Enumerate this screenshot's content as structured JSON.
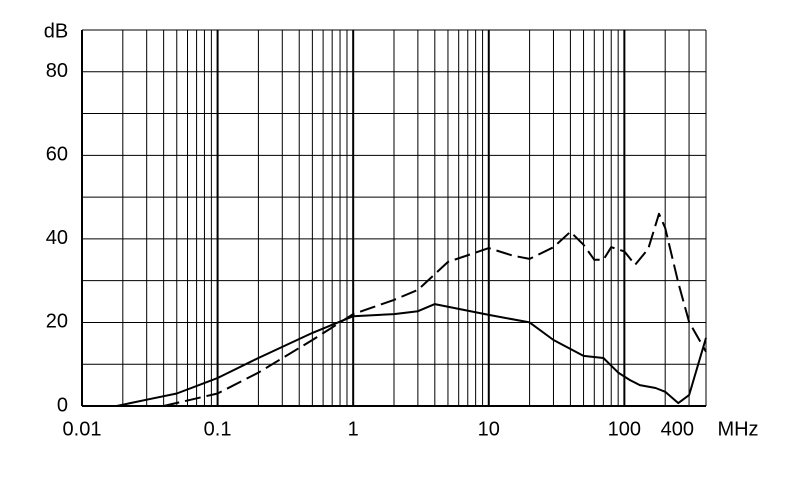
{
  "chart_data": {
    "type": "line",
    "y_unit": "dB",
    "x_unit": "MHz",
    "x_log": true,
    "xlim": [
      0.01,
      400
    ],
    "xticks": [
      0.01,
      0.1,
      1,
      10,
      100,
      400
    ],
    "x_minor_grid": [
      0.02,
      0.03,
      0.04,
      0.05,
      0.06,
      0.07,
      0.08,
      0.09,
      0.2,
      0.3,
      0.4,
      0.5,
      0.6,
      0.7,
      0.8,
      0.9,
      2,
      3,
      4,
      5,
      6,
      7,
      8,
      9,
      20,
      30,
      40,
      50,
      60,
      70,
      80,
      90,
      200,
      300
    ],
    "ylim": [
      0,
      90
    ],
    "yticks": [
      0,
      20,
      40,
      60,
      80
    ],
    "y_minor_grid": [
      10,
      30,
      50,
      70,
      90
    ],
    "grid": true,
    "series": [
      {
        "color": "#000000",
        "dash": false,
        "x": [
          0.018,
          0.03,
          0.05,
          0.1,
          0.2,
          0.5,
          1,
          2,
          3,
          4,
          10,
          20,
          30,
          50,
          70,
          90,
          110,
          130,
          170,
          200,
          250,
          300,
          400
        ],
        "values": [
          0,
          1.5,
          3,
          6.7,
          11.5,
          17.5,
          21.5,
          22,
          22.7,
          24.4,
          21.8,
          20,
          15.8,
          12,
          11.5,
          8,
          6.2,
          5,
          4.3,
          3.4,
          0.7,
          2.6,
          16.3
        ]
      },
      {
        "color": "#000000",
        "dash": true,
        "x": [
          0.04,
          0.1,
          0.2,
          0.5,
          1,
          2,
          3,
          5,
          10,
          15,
          20,
          30,
          40,
          50,
          60,
          70,
          80,
          100,
          120,
          150,
          180,
          200,
          250,
          300,
          400
        ],
        "values": [
          0,
          3,
          8,
          15.8,
          22,
          25.4,
          27.8,
          34.5,
          37.8,
          36,
          35.2,
          38,
          41.7,
          38.6,
          35,
          35,
          38,
          37,
          33.8,
          37.6,
          46,
          42.6,
          29.5,
          20.1,
          13
        ]
      }
    ]
  }
}
